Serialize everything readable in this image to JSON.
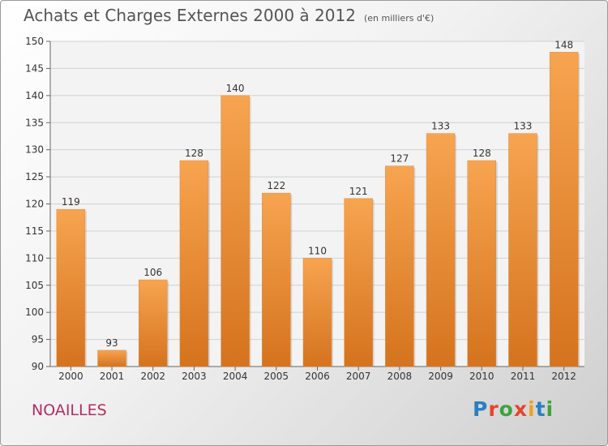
{
  "chart_data": {
    "type": "bar",
    "title": "Achats et Charges Externes 2000 à 2012",
    "subtitle": "(en milliers d'€)",
    "categories": [
      "2000",
      "2001",
      "2002",
      "2003",
      "2004",
      "2005",
      "2006",
      "2007",
      "2008",
      "2009",
      "2010",
      "2011",
      "2012"
    ],
    "values": [
      119,
      93,
      106,
      128,
      140,
      122,
      110,
      121,
      127,
      133,
      128,
      133,
      148
    ],
    "ylim": [
      90,
      150
    ],
    "yticks": [
      90,
      95,
      100,
      105,
      110,
      115,
      120,
      125,
      130,
      135,
      140,
      145,
      150
    ],
    "grid": true,
    "bar_color_top": "#f7a450",
    "bar_color_bottom": "#d5731e"
  },
  "location_label": "NOAILLES",
  "logo": {
    "text": "Proxiti",
    "colors": [
      "#2b7fc1",
      "#e8432e",
      "#3aa53a",
      "#e8432e",
      "#f0a020",
      "#2b7fc1",
      "#3aa53a"
    ]
  }
}
